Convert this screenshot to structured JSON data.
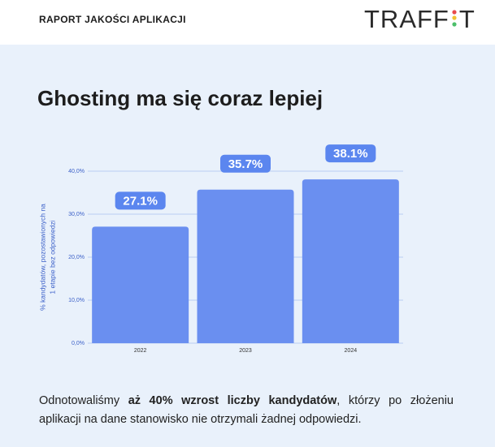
{
  "header": {
    "title": "RAPORT JAKOŚCI APLIKACJI",
    "logo": [
      "TRAFF",
      "T"
    ]
  },
  "chart_data": {
    "type": "bar",
    "title": "Ghosting ma się coraz lepiej",
    "ylabel": [
      "% kandydatów, pozostawionych na",
      "1 etapie bez odpowiedzi"
    ],
    "categories": [
      "2022",
      "2023",
      "2024"
    ],
    "values": [
      27.1,
      35.7,
      38.1
    ],
    "value_labels": [
      "27.1%",
      "35.7%",
      "38.1%"
    ],
    "color": "#6a8ff0",
    "ylim": [
      0,
      40
    ],
    "yticks": [
      {
        "value": 0,
        "label": "0,0%"
      },
      {
        "value": 10,
        "label": "10,0%"
      },
      {
        "value": 20,
        "label": "20,0%"
      },
      {
        "value": 30,
        "label": "30,0%"
      },
      {
        "value": 40,
        "label": "40,0%"
      }
    ],
    "grid": true
  },
  "footnote": [
    "Odnotowaliśmy",
    "aż 40% wzrost liczby kandydatów",
    ", którzy po złożeniu aplikacji na dane stanowisko nie otrzymali żadnej odpowiedzi."
  ]
}
